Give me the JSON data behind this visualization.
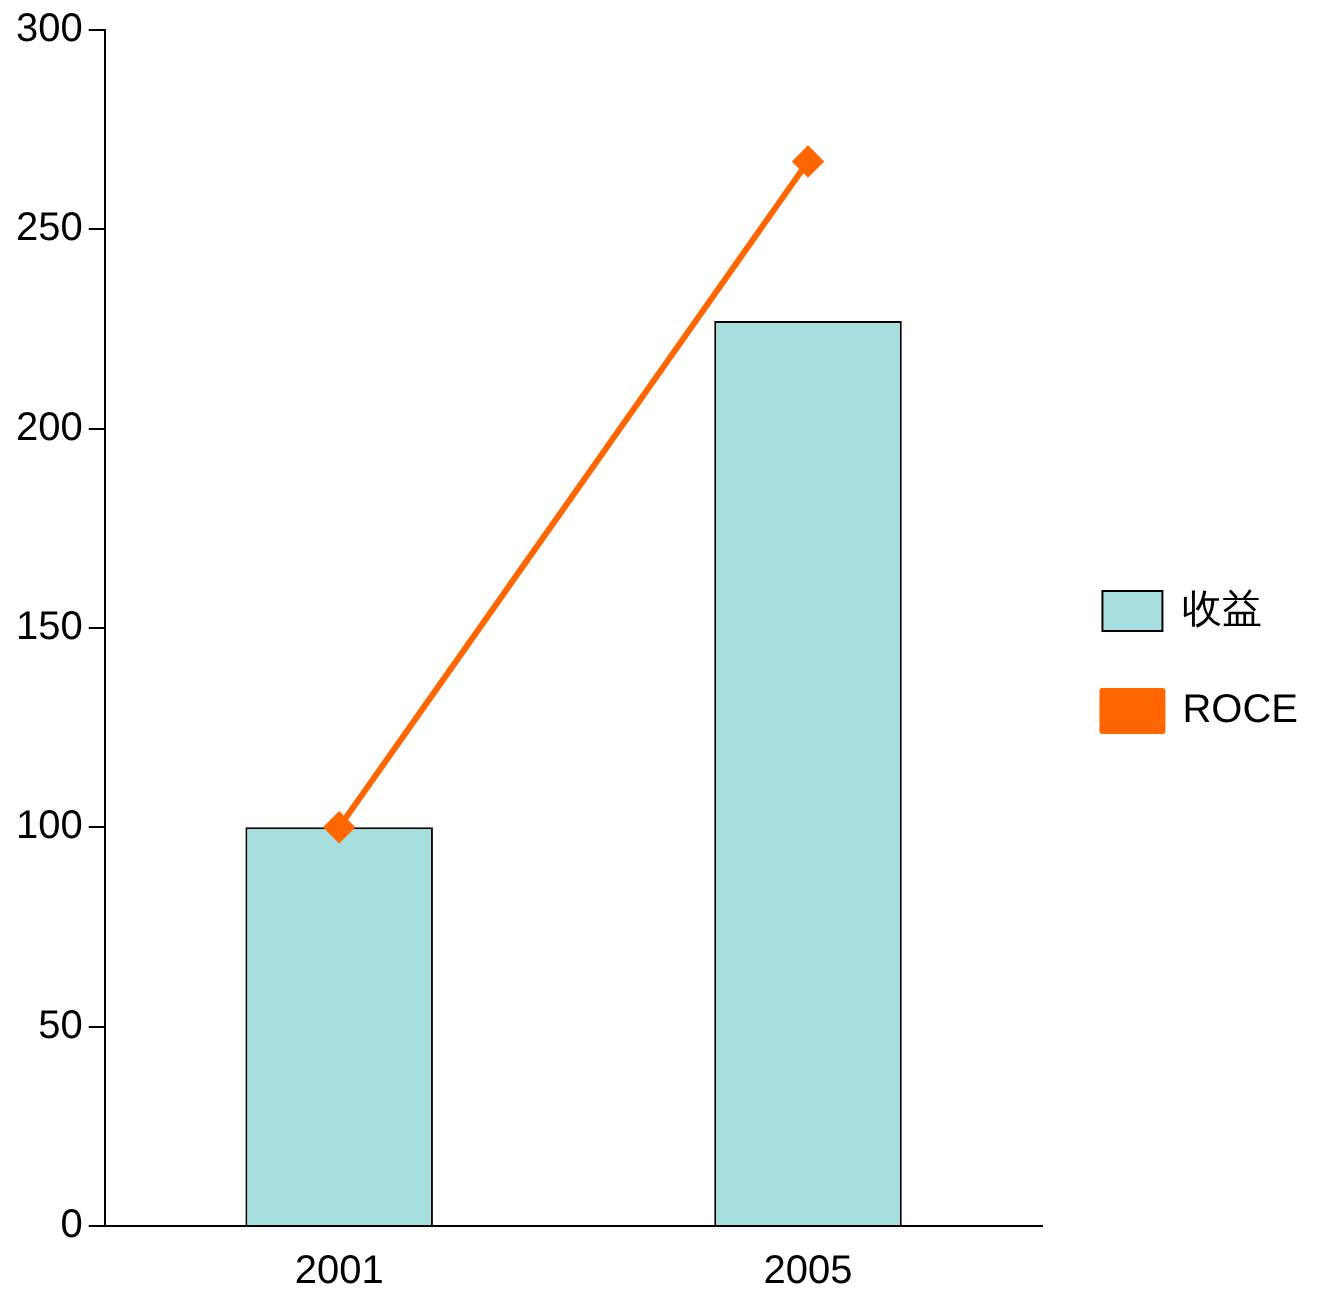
{
  "chart_data": {
    "type": "bar",
    "categories": [
      "2001",
      "2005"
    ],
    "series": [
      {
        "name": "收益",
        "color": "#a6dede",
        "values": [
          100,
          227
        ]
      },
      {
        "name": "ROCE",
        "type": "line",
        "color": "#ff6600",
        "values": [
          100,
          267
        ]
      }
    ],
    "ylim": [
      0,
      300
    ],
    "yticks": [
      0,
      50,
      100,
      150,
      200,
      250,
      300
    ],
    "grid": false,
    "legend": "right",
    "marker": "diamond"
  }
}
